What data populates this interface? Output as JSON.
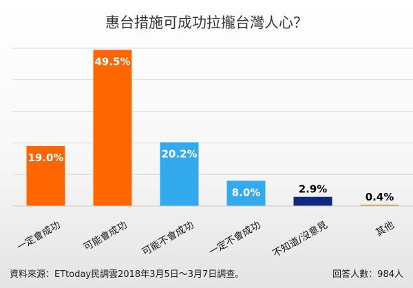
{
  "chart_data": {
    "type": "bar",
    "title": "惠台措施可成功拉攏台灣人心？",
    "categories": [
      "一定會成功",
      "可能會成功",
      "可能不會成功",
      "一定不會成功",
      "不知道/沒意見",
      "其他"
    ],
    "values": [
      19.0,
      49.5,
      20.2,
      8.0,
      2.9,
      0.4
    ],
    "value_labels": [
      "19.0%",
      "49.5%",
      "20.2%",
      "8.0%",
      "2.9%",
      "0.4%"
    ],
    "colors": [
      "#ff6600",
      "#ff6600",
      "#33aaee",
      "#33aaee",
      "#0e2a80",
      "#c8a040"
    ],
    "label_colors": [
      "#ffffff",
      "#ffffff",
      "#ffffff",
      "#ffffff",
      "#000000",
      "#000000"
    ],
    "ylim": [
      0,
      50
    ],
    "grid": true,
    "xlabel": "",
    "ylabel": ""
  },
  "footer": {
    "source": "資料來源：ETtoday民調雲2018年3月5日～3月7日調查。",
    "respondents": "回答人數：984人"
  }
}
